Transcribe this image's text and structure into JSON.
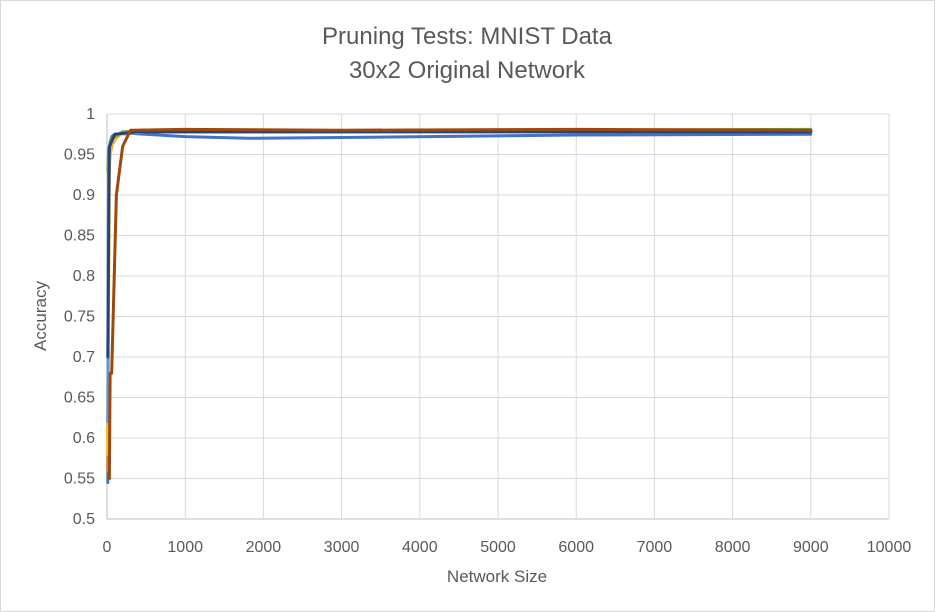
{
  "chart_data": {
    "type": "line",
    "title": "Pruning Tests: MNIST Data",
    "subtitle": "30x2 Original Network",
    "xlabel": "Network Size",
    "ylabel": "Accuracy",
    "xlim": [
      0,
      10000
    ],
    "ylim": [
      0.5,
      1
    ],
    "xticks": [
      0,
      1000,
      2000,
      3000,
      4000,
      5000,
      6000,
      7000,
      8000,
      9000,
      10000
    ],
    "yticks": [
      "0.5",
      "0.55",
      "0.6",
      "0.65",
      "0.7",
      "0.75",
      "0.8",
      "0.85",
      "0.9",
      "0.95",
      "1"
    ],
    "grid": true,
    "legend": "none",
    "series": [
      {
        "color": "#4472c4",
        "points": [
          [
            10,
            0.545
          ],
          [
            20,
            0.94
          ],
          [
            40,
            0.965
          ],
          [
            60,
            0.972
          ],
          [
            100,
            0.975
          ],
          [
            300,
            0.976
          ],
          [
            1000,
            0.972
          ],
          [
            1800,
            0.97
          ],
          [
            3000,
            0.971
          ],
          [
            6000,
            0.974
          ],
          [
            9000,
            0.975
          ]
        ]
      },
      {
        "color": "#ed7d31",
        "points": [
          [
            10,
            0.56
          ],
          [
            20,
            0.92
          ],
          [
            40,
            0.95
          ],
          [
            80,
            0.97
          ],
          [
            200,
            0.978
          ],
          [
            1000,
            0.979
          ],
          [
            3000,
            0.979
          ],
          [
            6000,
            0.98
          ],
          [
            9000,
            0.98
          ]
        ]
      },
      {
        "color": "#a5a5a5",
        "points": [
          [
            10,
            0.6
          ],
          [
            20,
            0.93
          ],
          [
            50,
            0.96
          ],
          [
            150,
            0.975
          ],
          [
            500,
            0.978
          ],
          [
            3000,
            0.978
          ],
          [
            9000,
            0.979
          ]
        ]
      },
      {
        "color": "#ffc000",
        "points": [
          [
            10,
            0.58
          ],
          [
            30,
            0.94
          ],
          [
            60,
            0.965
          ],
          [
            200,
            0.977
          ],
          [
            1000,
            0.979
          ],
          [
            9000,
            0.98
          ]
        ]
      },
      {
        "color": "#5b9bd5",
        "points": [
          [
            10,
            0.62
          ],
          [
            20,
            0.95
          ],
          [
            60,
            0.97
          ],
          [
            200,
            0.978
          ],
          [
            9000,
            0.979
          ]
        ]
      },
      {
        "color": "#70ad47",
        "points": [
          [
            10,
            0.93
          ],
          [
            20,
            0.955
          ],
          [
            60,
            0.97
          ],
          [
            200,
            0.978
          ],
          [
            9000,
            0.981
          ]
        ]
      },
      {
        "color": "#264478",
        "points": [
          [
            10,
            0.7
          ],
          [
            30,
            0.96
          ],
          [
            100,
            0.975
          ],
          [
            400,
            0.978
          ],
          [
            9000,
            0.978
          ]
        ]
      },
      {
        "color": "#9e480e",
        "points": [
          [
            30,
            0.55
          ],
          [
            40,
            0.68
          ],
          [
            60,
            0.68
          ],
          [
            120,
            0.9
          ],
          [
            200,
            0.96
          ],
          [
            300,
            0.98
          ],
          [
            1000,
            0.981
          ],
          [
            3000,
            0.98
          ],
          [
            6000,
            0.981
          ],
          [
            9000,
            0.98
          ]
        ]
      }
    ]
  }
}
